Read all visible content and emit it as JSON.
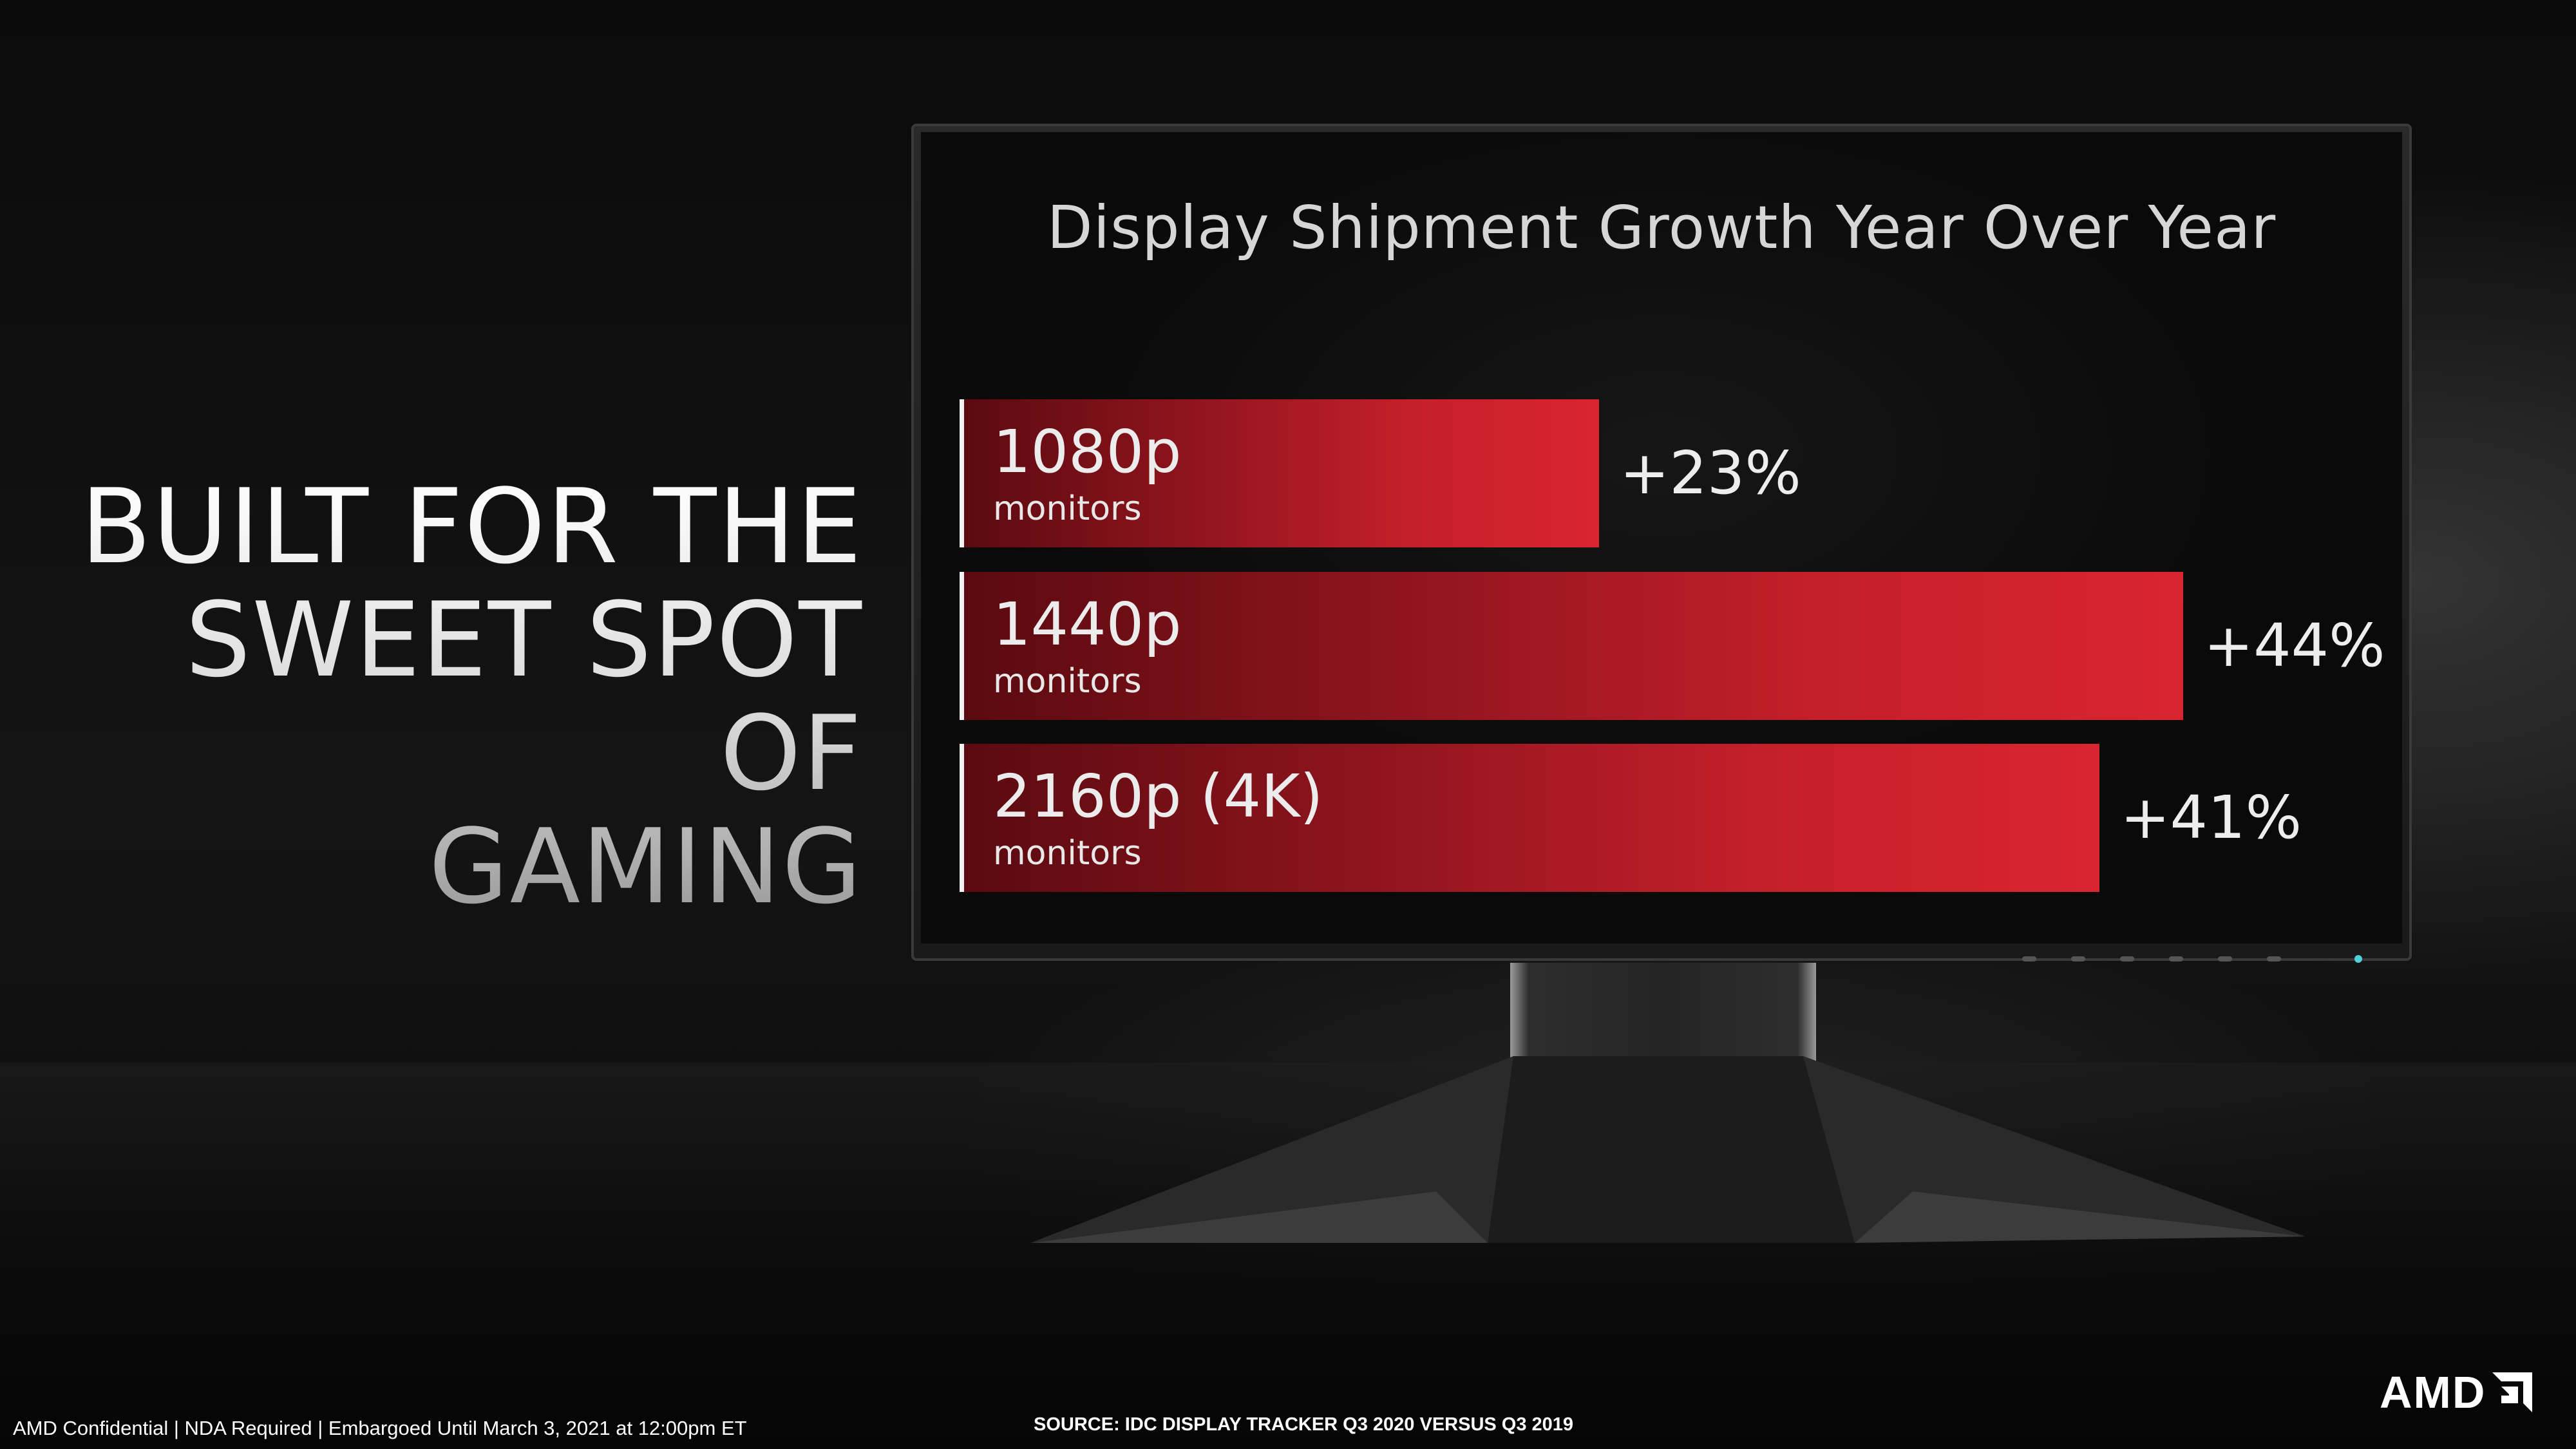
{
  "headline": {
    "line1": "BUILT FOR THE",
    "line2": "SWEET SPOT OF",
    "line3": "GAMING"
  },
  "chart_data": {
    "type": "bar",
    "orientation": "horizontal",
    "title": "Display Shipment Growth Year Over Year",
    "xlabel": "",
    "ylabel": "",
    "xlim": [
      0,
      50
    ],
    "grid": false,
    "categories": [
      "1080p",
      "1440p",
      "2160p (4K)"
    ],
    "category_sublabel": "monitors",
    "values": [
      23,
      44,
      41
    ],
    "value_labels": [
      "+23%",
      "+44%",
      "+41%"
    ],
    "unit": "%"
  },
  "footer": {
    "confidential": "AMD Confidential | NDA Required | Embargoed Until March 3, 2021 at 12:00pm ET",
    "source": "SOURCE: IDC DISPLAY TRACKER Q3 2020 VERSUS Q3 2019"
  },
  "logo": {
    "text": "AMD"
  },
  "colors": {
    "bar_dark": "#5a0a10",
    "bar_bright": "#d9252f",
    "background": "#0b0b0b",
    "text": "#ececec"
  }
}
